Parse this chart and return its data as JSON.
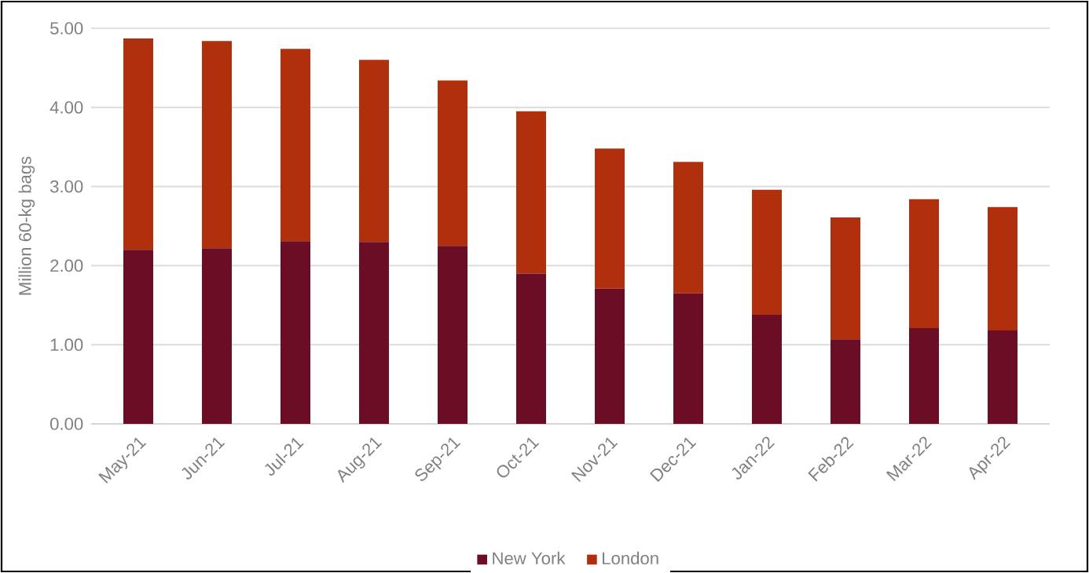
{
  "chart_data": {
    "type": "bar",
    "stacked": true,
    "ylabel": "Million 60-kg bags",
    "categories": [
      "May-21",
      "Jun-21",
      "Jul-21",
      "Aug-21",
      "Sep-21",
      "Oct-21",
      "Nov-21",
      "Dec-21",
      "Jan-22",
      "Feb-22",
      "Mar-22",
      "Apr-22"
    ],
    "series": [
      {
        "name": "New York",
        "color": "#6b0d24",
        "values": [
          2.2,
          2.22,
          2.31,
          2.3,
          2.25,
          1.9,
          1.71,
          1.65,
          1.38,
          1.07,
          1.21,
          1.18
        ]
      },
      {
        "name": "London",
        "color": "#b0300e",
        "values": [
          2.67,
          2.62,
          2.43,
          2.3,
          2.09,
          2.05,
          1.77,
          1.66,
          1.58,
          1.54,
          1.63,
          1.56
        ]
      }
    ],
    "ylim": [
      0,
      5
    ],
    "yticks": [
      {
        "value": 0,
        "label": "0.00"
      },
      {
        "value": 1,
        "label": "1.00"
      },
      {
        "value": 2,
        "label": "2.00"
      },
      {
        "value": 3,
        "label": "3.00"
      },
      {
        "value": 4,
        "label": "4.00"
      },
      {
        "value": 5,
        "label": "5.00"
      }
    ],
    "grid": "y",
    "legend": "bottom"
  }
}
